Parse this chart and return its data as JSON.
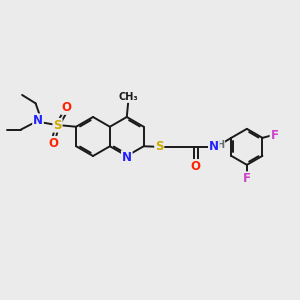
{
  "bg_color": "#ebebeb",
  "bond_color": "#1a1a1a",
  "bond_width": 1.4,
  "atom_colors": {
    "N": "#2222ff",
    "S": "#ccaa00",
    "O": "#ff2200",
    "F": "#cc44cc",
    "H": "#607070",
    "C": "#1a1a1a"
  },
  "figsize": [
    3.0,
    3.0
  ],
  "dpi": 100
}
